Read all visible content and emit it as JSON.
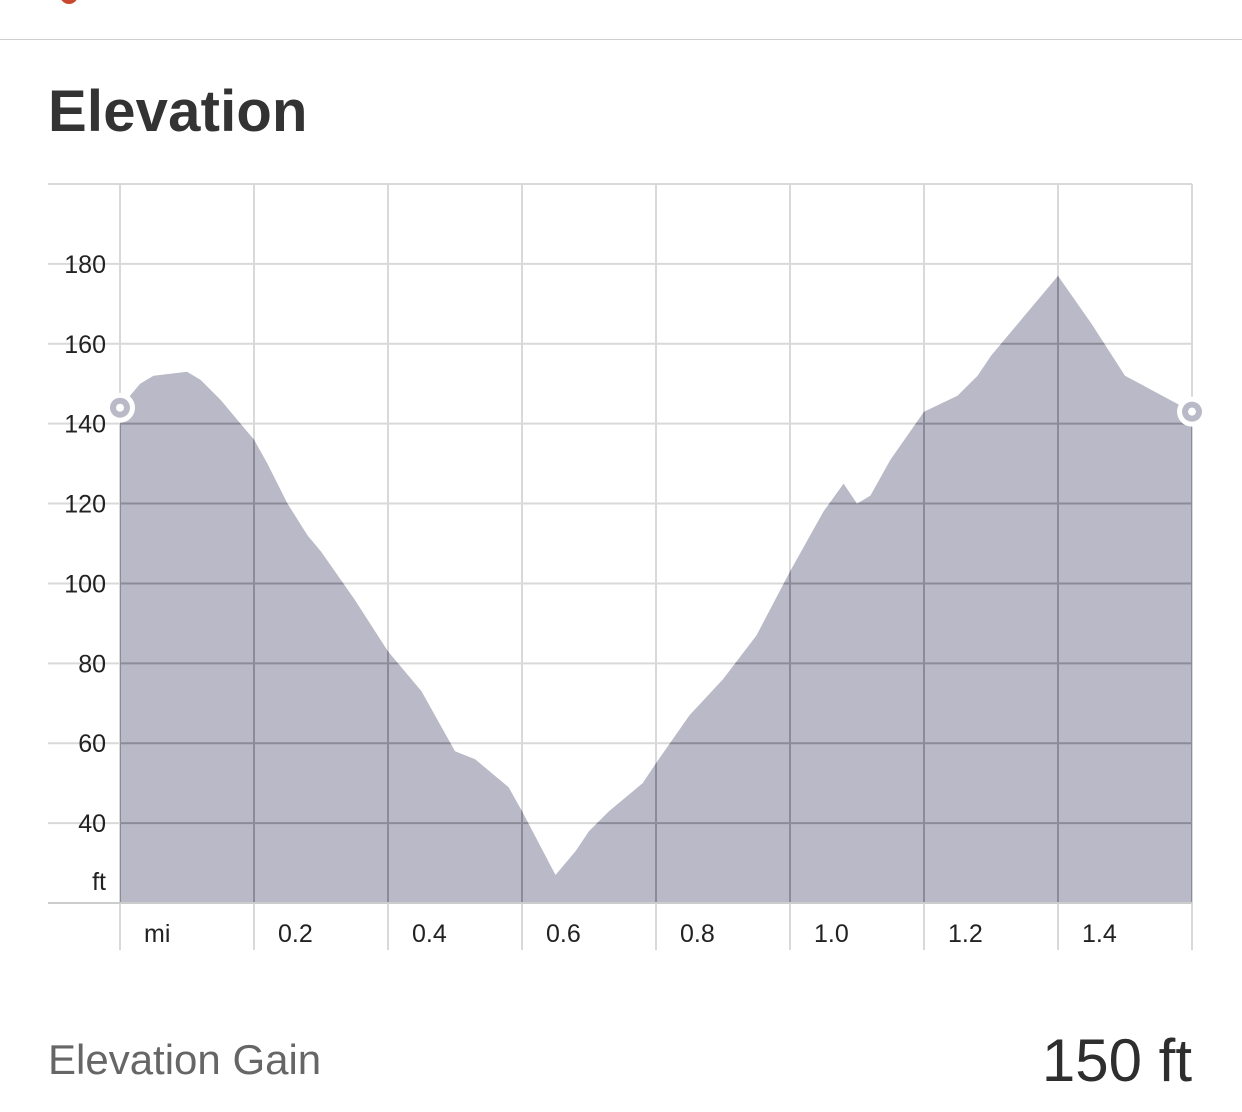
{
  "header": {
    "title": "Elevation"
  },
  "stats": {
    "gain_label": "Elevation Gain",
    "gain_value": "150 ft"
  },
  "colors": {
    "area_fill": "#b9b9c7",
    "grid_light": "#d9d9d9",
    "grid_dark": "#8c8c98",
    "marker": "#b9b9c7",
    "top_icon": "#c9472f"
  },
  "chart_data": {
    "type": "area",
    "title": "Elevation",
    "xlabel": "mi",
    "ylabel": "ft",
    "xlim": [
      0,
      1.6
    ],
    "ylim": [
      20,
      200
    ],
    "x_ticks": [
      0.2,
      0.4,
      0.6,
      0.8,
      1.0,
      1.2,
      1.4
    ],
    "x_tick_labels": [
      "0.2",
      "0.4",
      "0.6",
      "0.8",
      "1.0",
      "1.2",
      "1.4"
    ],
    "y_ticks": [
      40,
      60,
      80,
      100,
      120,
      140,
      160,
      180
    ],
    "y_tick_labels": [
      "40",
      "60",
      "80",
      "100",
      "120",
      "140",
      "160",
      "180"
    ],
    "grid": true,
    "x": [
      0,
      0.03,
      0.05,
      0.1,
      0.12,
      0.15,
      0.18,
      0.2,
      0.22,
      0.25,
      0.28,
      0.3,
      0.35,
      0.4,
      0.45,
      0.5,
      0.53,
      0.58,
      0.6,
      0.65,
      0.68,
      0.7,
      0.73,
      0.78,
      0.8,
      0.85,
      0.9,
      0.95,
      1.0,
      1.03,
      1.05,
      1.08,
      1.1,
      1.12,
      1.15,
      1.2,
      1.25,
      1.28,
      1.3,
      1.35,
      1.38,
      1.4,
      1.45,
      1.5,
      1.6
    ],
    "y": [
      144,
      150,
      152,
      153,
      151,
      146,
      140,
      136,
      130,
      120,
      112,
      108,
      96,
      83,
      73,
      58,
      56,
      49,
      43,
      27,
      33,
      38,
      43,
      50,
      55,
      67,
      76,
      87,
      103,
      112,
      118,
      125,
      120,
      122,
      131,
      143,
      147,
      152,
      157,
      167,
      173,
      177,
      165,
      152,
      143
    ],
    "start_marker": {
      "x": 0,
      "y": 144
    },
    "end_marker": {
      "x": 1.6,
      "y": 143
    }
  }
}
